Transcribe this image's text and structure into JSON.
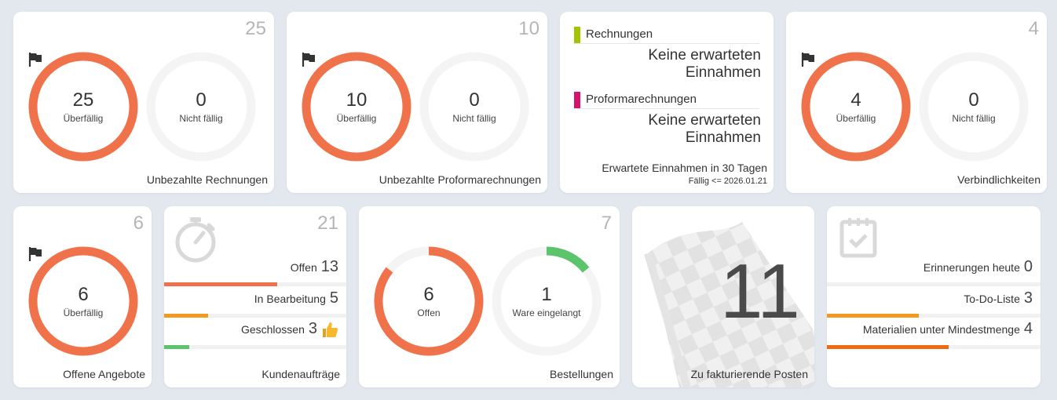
{
  "colors": {
    "overdue": "#f0724b",
    "track": "#f4f4f4",
    "green": "#5cc46b",
    "invoice_marker": "#a5c400",
    "proforma_marker": "#d6136a",
    "bar_orange": "#f29a1f",
    "bar_deep_orange": "#f06a12"
  },
  "cards": {
    "unpaid_invoices": {
      "count": "25",
      "overdue_value": "25",
      "overdue_label": "Überfällig",
      "not_due_value": "0",
      "not_due_label": "Nicht fällig",
      "title": "Unbezahlte Rechnungen"
    },
    "unpaid_proforma": {
      "count": "10",
      "overdue_value": "10",
      "overdue_label": "Überfällig",
      "not_due_value": "0",
      "not_due_label": "Nicht fällig",
      "title": "Unbezahlte Proformarechnungen"
    },
    "expected_income": {
      "invoices_label": "Rechnungen",
      "invoices_value_line1": "Keine erwarteten",
      "invoices_value_line2": "Einnahmen",
      "proforma_label": "Proformarechnungen",
      "proforma_value_line1": "Keine erwarteten",
      "proforma_value_line2": "Einnahmen",
      "title": "Erwartete Einnahmen in 30 Tagen",
      "due_note": "Fällig <= 2026.01.21"
    },
    "liabilities": {
      "count": "4",
      "overdue_value": "4",
      "overdue_label": "Überfällig",
      "not_due_value": "0",
      "not_due_label": "Nicht fällig",
      "title": "Verbindlichkeiten"
    },
    "open_offers": {
      "count": "6",
      "overdue_value": "6",
      "overdue_label": "Überfällig",
      "title": "Offene Angebote"
    },
    "customer_orders": {
      "count": "21",
      "rows": [
        {
          "label": "Offen",
          "value": "13",
          "fraction": 0.62
        },
        {
          "label": "In Bearbeitung",
          "value": "5",
          "fraction": 0.24
        },
        {
          "label": "Geschlossen",
          "value": "3",
          "fraction": 0.14
        }
      ],
      "title": "Kundenaufträge"
    },
    "orders": {
      "count": "7",
      "open_value": "6",
      "open_label": "Offen",
      "open_fraction": 0.857,
      "received_value": "1",
      "received_label": "Ware eingelangt",
      "received_fraction": 0.143,
      "title": "Bestellungen"
    },
    "to_invoice": {
      "value": "11",
      "title": "Zu fakturierende Posten"
    },
    "reminders": {
      "rows": [
        {
          "label": "Erinnerungen heute",
          "value": "0",
          "fraction": 0.0
        },
        {
          "label": "To-Do-Liste",
          "value": "3",
          "fraction": 0.43
        },
        {
          "label": "Materialien unter Mindestmenge",
          "value": "4",
          "fraction": 0.57
        }
      ]
    }
  }
}
